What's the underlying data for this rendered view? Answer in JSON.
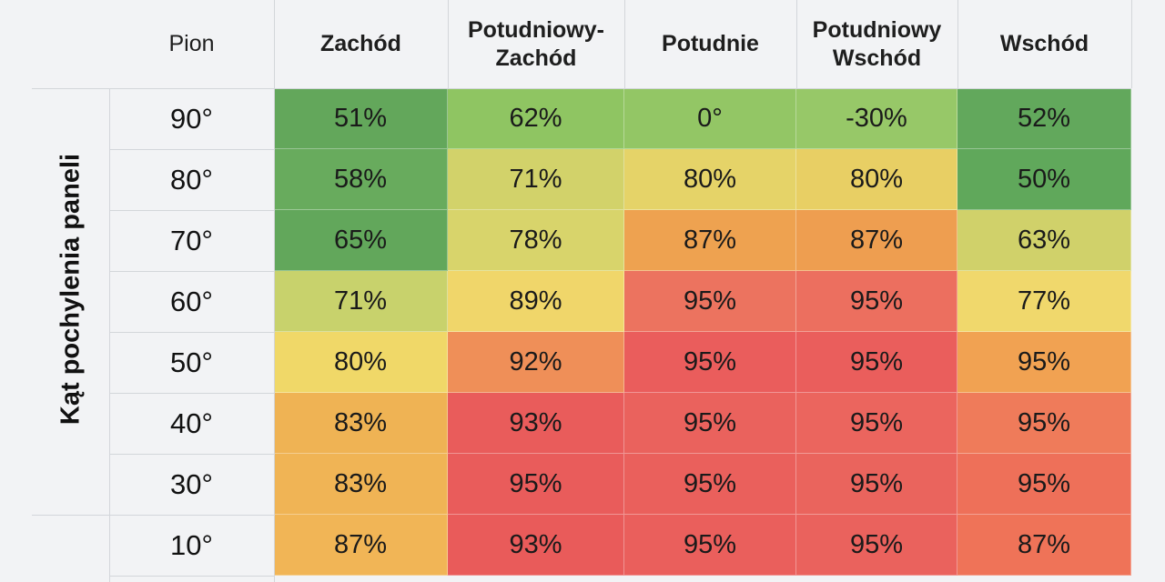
{
  "chart_data": {
    "type": "heatmap",
    "title": "",
    "xlabel": "",
    "ylabel": "Kąt pochylenia paneli",
    "corner_label": "Pion",
    "columns": [
      "Zachód",
      "Potudniowy-\nZachód",
      "Potudnie",
      "Potudniowy\nWschód",
      "Wschód"
    ],
    "rows": [
      "90°",
      "80°",
      "70°",
      "60°",
      "50°",
      "40°",
      "30°",
      "10°"
    ],
    "cells": [
      [
        {
          "label": "51%",
          "color": "#63a75b"
        },
        {
          "label": "62%",
          "color": "#8fc562"
        },
        {
          "label": "0°",
          "color": "#93c665"
        },
        {
          "label": "-30%",
          "color": "#97c868"
        },
        {
          "label": "52%",
          "color": "#62a85c"
        }
      ],
      [
        {
          "label": "58%",
          "color": "#68ab5d"
        },
        {
          "label": "71%",
          "color": "#d2d26a"
        },
        {
          "label": "80%",
          "color": "#e5d368"
        },
        {
          "label": "80%",
          "color": "#e8cf64"
        },
        {
          "label": "50%",
          "color": "#60a85b"
        }
      ],
      [
        {
          "label": "65%",
          "color": "#62a75b"
        },
        {
          "label": "78%",
          "color": "#d8d46b"
        },
        {
          "label": "87%",
          "color": "#eea250"
        },
        {
          "label": "87%",
          "color": "#ee9e50"
        },
        {
          "label": "63%",
          "color": "#d0d16a"
        }
      ],
      [
        {
          "label": "71%",
          "color": "#c8d26c"
        },
        {
          "label": "89%",
          "color": "#f0d66a"
        },
        {
          "label": "95%",
          "color": "#ec735f"
        },
        {
          "label": "95%",
          "color": "#ec6f5f"
        },
        {
          "label": "77%",
          "color": "#f0d86c"
        }
      ],
      [
        {
          "label": "80%",
          "color": "#f0d868"
        },
        {
          "label": "92%",
          "color": "#ef8f58"
        },
        {
          "label": "95%",
          "color": "#ea5d5c"
        },
        {
          "label": "95%",
          "color": "#ea5e5c"
        },
        {
          "label": "95%",
          "color": "#f1a252"
        }
      ],
      [
        {
          "label": "83%",
          "color": "#efb354"
        },
        {
          "label": "93%",
          "color": "#e95c5b"
        },
        {
          "label": "95%",
          "color": "#ea625d"
        },
        {
          "label": "95%",
          "color": "#eb655e"
        },
        {
          "label": "95%",
          "color": "#ef7b5a"
        }
      ],
      [
        {
          "label": "83%",
          "color": "#f0b455"
        },
        {
          "label": "95%",
          "color": "#e95c5b"
        },
        {
          "label": "95%",
          "color": "#ea605c"
        },
        {
          "label": "95%",
          "color": "#ea645d"
        },
        {
          "label": "95%",
          "color": "#ee7059"
        }
      ],
      [
        {
          "label": "87%",
          "color": "#f1b556"
        },
        {
          "label": "93%",
          "color": "#e95b5a"
        },
        {
          "label": "95%",
          "color": "#ea5f5c"
        },
        {
          "label": "95%",
          "color": "#ea625d"
        },
        {
          "label": "87%",
          "color": "#ef7358"
        }
      ]
    ]
  }
}
